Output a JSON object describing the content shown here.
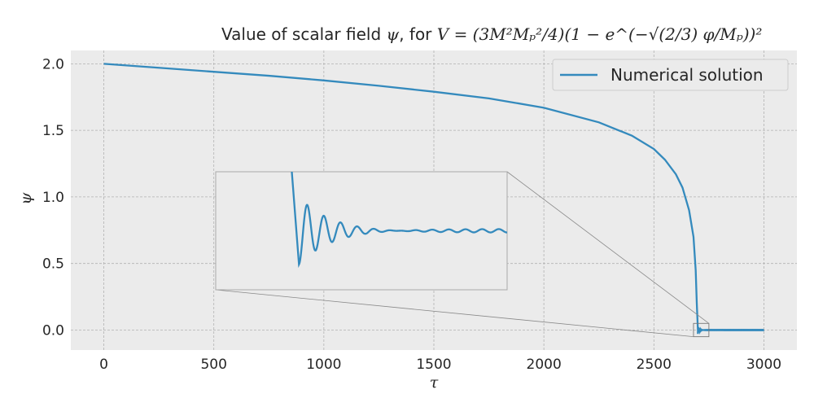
{
  "chart_data": {
    "type": "line",
    "title": {
      "prefix": "Value of scalar field ",
      "symbol": "ψ",
      "middle": ", for ",
      "formula": "V = (3M²Mₚ²/4)(1 − e^(−√(2/3) φ/Mₚ))²"
    },
    "xlabel": "τ",
    "ylabel": "ψ",
    "xlim": [
      -150,
      3150
    ],
    "ylim": [
      -0.15,
      2.1
    ],
    "xticks": [
      0,
      500,
      1000,
      1500,
      2000,
      2500,
      3000
    ],
    "xtick_labels": [
      "0",
      "500",
      "1000",
      "1500",
      "2000",
      "2500",
      "3000"
    ],
    "yticks": [
      0.0,
      0.5,
      1.0,
      1.5,
      2.0
    ],
    "ytick_labels": [
      "0.0",
      "0.5",
      "1.0",
      "1.5",
      "2.0"
    ],
    "grid": true,
    "legend_position": "top-right",
    "series": [
      {
        "name": "Numerical solution",
        "color": "#348ABD",
        "x": [
          0,
          250,
          500,
          750,
          1000,
          1250,
          1500,
          1750,
          2000,
          2250,
          2400,
          2500,
          2550,
          2600,
          2630,
          2660,
          2680,
          2690,
          2695,
          2700,
          3000
        ],
        "y": [
          2.0,
          1.97,
          1.94,
          1.91,
          1.875,
          1.835,
          1.79,
          1.74,
          1.67,
          1.56,
          1.46,
          1.36,
          1.28,
          1.17,
          1.07,
          0.9,
          0.7,
          0.45,
          0.2,
          0.0,
          0.0
        ]
      }
    ],
    "inset": {
      "zoom_region": {
        "xlim": [
          2680,
          2750
        ],
        "ylim": [
          -0.05,
          0.05
        ]
      },
      "oscillation": {
        "start": 0.03,
        "equilibrium": 0.0,
        "initial_amplitude": 0.03,
        "period": 4,
        "decay_time": 8,
        "residual_amplitude": 0.0015
      }
    }
  }
}
